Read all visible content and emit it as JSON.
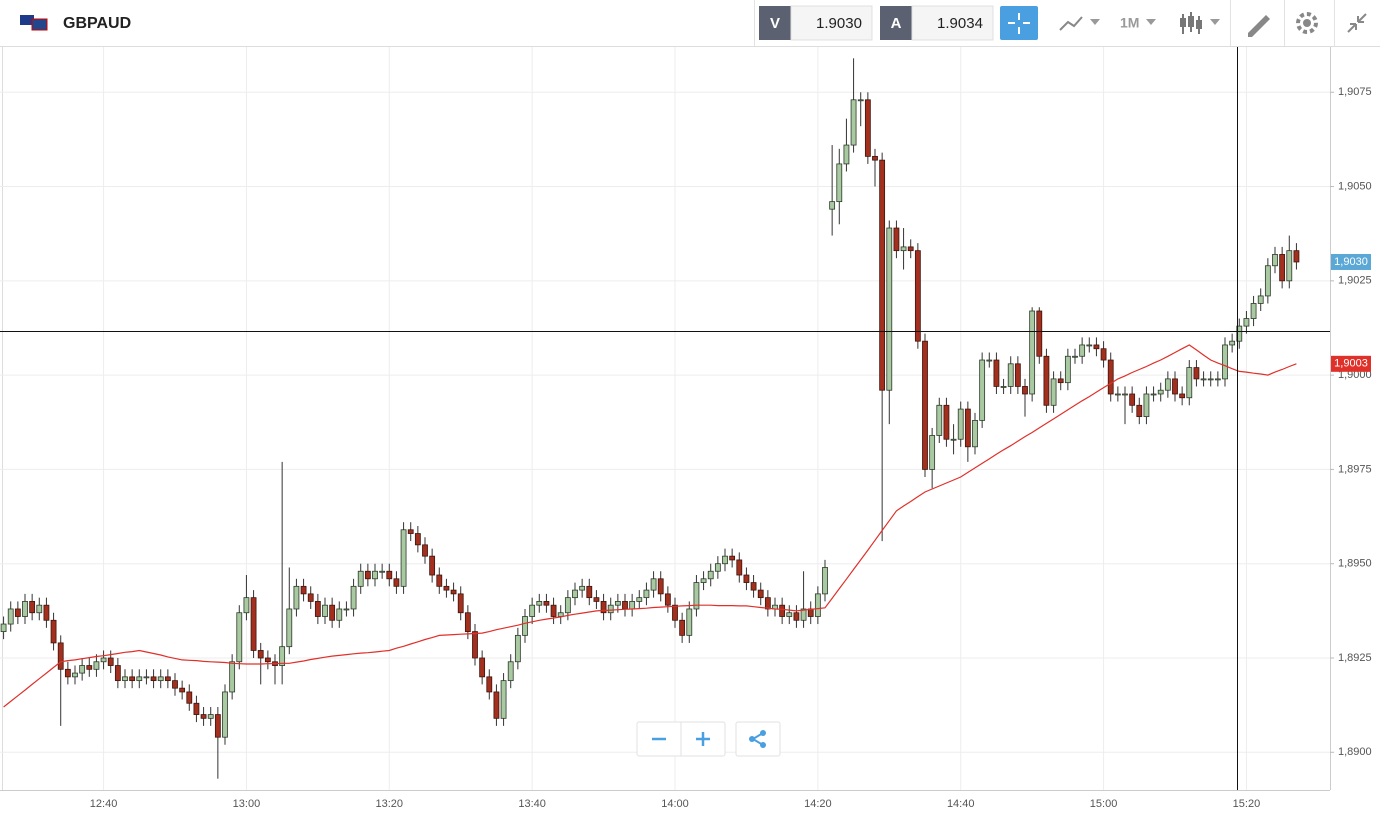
{
  "header": {
    "symbol": "GBPAUD",
    "bid_label": "V",
    "bid": "1.9030",
    "ask_label": "A",
    "ask": "1.9034",
    "interval": "1M"
  },
  "chart_data": {
    "type": "candlestick",
    "categories": [
      null,
      null,
      null,
      null,
      null,
      null,
      null,
      null,
      null,
      null,
      null,
      null,
      null,
      null,
      "12:40",
      null,
      null,
      null,
      null,
      null,
      null,
      null,
      null,
      null,
      null,
      null,
      null,
      null,
      null,
      null,
      null,
      null,
      null,
      null,
      "13:00",
      null,
      null,
      null,
      null,
      null,
      null,
      null,
      null,
      null,
      null,
      null,
      null,
      null,
      null,
      null,
      null,
      null,
      null,
      null,
      "13:20",
      null,
      null,
      null,
      null,
      null,
      null,
      null,
      null,
      null,
      null,
      null,
      null,
      null,
      null,
      null,
      null,
      null,
      null,
      null,
      "13:40",
      null,
      null,
      null,
      null,
      null,
      null,
      null,
      null,
      null,
      null,
      null,
      null,
      null,
      null,
      null,
      null,
      null,
      null,
      null,
      "14:00",
      null,
      null,
      null,
      null,
      null,
      null,
      null,
      null,
      null,
      null,
      null,
      null,
      null,
      null,
      null,
      null,
      null,
      null,
      null,
      "14:20",
      null,
      null,
      null,
      null,
      null,
      null,
      null,
      null,
      null,
      null,
      null,
      null,
      null,
      null,
      null,
      null,
      null,
      null,
      null,
      "14:40",
      null,
      null,
      null,
      null,
      null,
      null,
      null,
      null,
      null,
      null,
      null,
      null,
      null,
      null,
      null,
      null,
      null,
      null,
      null,
      "15:00",
      null,
      null,
      null,
      null,
      null,
      null,
      null,
      null,
      null,
      null,
      null,
      null,
      null,
      null,
      null,
      null,
      null,
      null,
      null,
      "15:20",
      null,
      null,
      null,
      null,
      null,
      null,
      null
    ],
    "open": [
      1.8932,
      1.8934,
      1.8938,
      1.8936,
      1.894,
      1.8937,
      1.8939,
      1.8935,
      1.8929,
      1.8922,
      1.892,
      1.8921,
      1.8923,
      1.8922,
      1.8924,
      1.8925,
      1.8923,
      1.8919,
      1.892,
      1.8919,
      1.892,
      1.892,
      1.8919,
      1.892,
      1.8919,
      1.8917,
      1.8916,
      1.8913,
      1.891,
      1.8909,
      1.891,
      1.8904,
      1.8916,
      1.8924,
      1.8937,
      1.8941,
      1.8927,
      1.8925,
      1.8924,
      1.8923,
      1.8928,
      1.8938,
      1.8944,
      1.8942,
      1.894,
      1.8936,
      1.8939,
      1.8935,
      1.8938,
      1.8938,
      1.8944,
      1.8948,
      1.8946,
      1.8948,
      1.8948,
      1.8946,
      1.8944,
      1.8959,
      1.8958,
      1.8955,
      1.8952,
      1.8947,
      1.8944,
      1.8943,
      1.8942,
      1.8937,
      1.8932,
      1.8925,
      1.892,
      1.8916,
      1.8909,
      1.8919,
      1.8924,
      1.8931,
      1.8936,
      1.8939,
      1.894,
      1.8939,
      1.8936,
      1.8937,
      1.8941,
      1.8943,
      1.8944,
      1.8941,
      1.894,
      1.8937,
      1.8939,
      1.894,
      1.8938,
      1.894,
      1.8941,
      1.8943,
      1.8946,
      1.8942,
      1.8939,
      1.8935,
      1.8931,
      1.8938,
      1.8945,
      1.8946,
      1.8948,
      1.895,
      1.8952,
      1.8951,
      1.8947,
      1.8945,
      1.8943,
      1.8941,
      1.8938,
      1.8939,
      1.8936,
      1.8937,
      1.8935,
      1.8938,
      1.8936,
      1.8942,
      1.9044,
      1.9046,
      1.9056,
      1.9061,
      1.9073,
      1.9073,
      1.9058,
      1.9057,
      1.8996,
      1.9039,
      1.9033,
      1.9034,
      1.9033,
      1.9009,
      1.8975,
      1.8984,
      1.8992,
      1.8983,
      1.8983,
      1.8991,
      1.8981,
      1.8988,
      1.9004,
      1.9004,
      1.8997,
      1.8997,
      1.9003,
      1.8997,
      1.8995,
      1.9017,
      1.9005,
      1.8992,
      1.8999,
      1.8998,
      1.9005,
      1.9005,
      1.9008,
      1.9008,
      1.9007,
      1.9004,
      1.8995,
      1.8995,
      1.8995,
      1.8992,
      1.8989,
      1.8995,
      1.8995,
      1.8996,
      1.8999,
      1.8995,
      1.8994,
      1.9002,
      1.8999,
      1.8999,
      1.8999,
      1.8999,
      1.9008,
      1.9009,
      1.9013,
      1.9015,
      1.9019,
      1.9021,
      1.9029,
      1.9032,
      1.9025,
      1.9033
    ],
    "high": [
      1.8936,
      1.894,
      1.894,
      1.8942,
      1.8942,
      1.8941,
      1.8941,
      1.8937,
      1.8931,
      1.8924,
      1.8923,
      1.8925,
      1.8925,
      1.8926,
      1.8927,
      1.8927,
      1.8925,
      1.8922,
      1.8922,
      1.8922,
      1.8922,
      1.8922,
      1.8922,
      1.8922,
      1.8921,
      1.8919,
      1.8918,
      1.8915,
      1.8912,
      1.8912,
      1.8912,
      1.8918,
      1.8926,
      1.8939,
      1.8947,
      1.8943,
      1.8929,
      1.8927,
      1.8926,
      1.8977,
      1.8949,
      1.8946,
      1.8946,
      1.8944,
      1.8942,
      1.8941,
      1.8941,
      1.894,
      1.894,
      1.8946,
      1.895,
      1.895,
      1.895,
      1.895,
      1.895,
      1.8948,
      1.8961,
      1.8961,
      1.896,
      1.8957,
      1.8954,
      1.8949,
      1.8946,
      1.8945,
      1.8944,
      1.8939,
      1.8934,
      1.8927,
      1.8922,
      1.8918,
      1.8921,
      1.8926,
      1.8933,
      1.8938,
      1.8941,
      1.8942,
      1.8942,
      1.8941,
      1.8939,
      1.8943,
      1.8945,
      1.8946,
      1.8946,
      1.8943,
      1.8942,
      1.8941,
      1.8942,
      1.8942,
      1.8942,
      1.8943,
      1.8945,
      1.8948,
      1.8948,
      1.8944,
      1.8941,
      1.8937,
      1.894,
      1.8947,
      1.8948,
      1.895,
      1.8952,
      1.8954,
      1.8954,
      1.8953,
      1.8949,
      1.8947,
      1.8945,
      1.8943,
      1.8941,
      1.8941,
      1.8939,
      1.8939,
      1.8948,
      1.894,
      1.8944,
      1.8951,
      1.9061,
      1.906,
      1.9068,
      1.9084,
      1.9075,
      1.9075,
      1.906,
      1.9059,
      1.9041,
      1.9041,
      1.9039,
      1.9036,
      1.9035,
      1.9011,
      1.8986,
      1.8994,
      1.8994,
      1.8987,
      1.8993,
      1.8993,
      1.899,
      1.9006,
      1.9006,
      1.9006,
      1.8999,
      1.9005,
      1.9005,
      1.8999,
      1.9018,
      1.9018,
      1.9007,
      1.9001,
      1.9001,
      1.9007,
      1.9007,
      1.901,
      1.901,
      1.901,
      1.9009,
      1.9006,
      1.8997,
      1.8997,
      1.8997,
      1.8994,
      1.8997,
      1.8997,
      1.8998,
      1.9001,
      1.9001,
      1.8997,
      1.9004,
      1.9004,
      1.9001,
      1.9001,
      1.9001,
      1.901,
      1.9011,
      1.9015,
      1.9017,
      1.9021,
      1.9023,
      1.9031,
      1.9034,
      1.9034,
      1.9037,
      1.9035
    ],
    "low": [
      1.893,
      1.8932,
      1.8934,
      1.8934,
      1.8935,
      1.8935,
      1.8933,
      1.8927,
      1.8907,
      1.8918,
      1.8918,
      1.8919,
      1.892,
      1.892,
      1.8922,
      1.8921,
      1.8917,
      1.8917,
      1.8917,
      1.8917,
      1.8918,
      1.8917,
      1.8917,
      1.8917,
      1.8915,
      1.8914,
      1.8911,
      1.8908,
      1.8907,
      1.8907,
      1.8893,
      1.8902,
      1.8914,
      1.8922,
      1.8935,
      1.8925,
      1.8918,
      1.8922,
      1.8918,
      1.8918,
      1.8926,
      1.8936,
      1.894,
      1.8938,
      1.8934,
      1.8934,
      1.8933,
      1.8933,
      1.8936,
      1.8936,
      1.8942,
      1.8944,
      1.8944,
      1.8946,
      1.8944,
      1.8942,
      1.8942,
      1.8956,
      1.8953,
      1.895,
      1.8945,
      1.8942,
      1.8941,
      1.894,
      1.8935,
      1.893,
      1.8923,
      1.8918,
      1.8914,
      1.8907,
      1.8907,
      1.8917,
      1.8922,
      1.8929,
      1.8934,
      1.8937,
      1.8937,
      1.8934,
      1.8934,
      1.8935,
      1.8939,
      1.8941,
      1.8939,
      1.8938,
      1.8935,
      1.8935,
      1.8937,
      1.8936,
      1.8936,
      1.8938,
      1.8939,
      1.8941,
      1.894,
      1.8937,
      1.8933,
      1.8929,
      1.8929,
      1.8936,
      1.8943,
      1.8944,
      1.8946,
      1.8948,
      1.8949,
      1.8945,
      1.8943,
      1.8941,
      1.8939,
      1.8936,
      1.8936,
      1.8934,
      1.8934,
      1.8933,
      1.8933,
      1.8934,
      1.8934,
      1.894,
      1.9037,
      1.904,
      1.9054,
      1.9059,
      1.9066,
      1.9056,
      1.905,
      1.8956,
      1.8987,
      1.9031,
      1.9028,
      1.9031,
      1.9007,
      1.8973,
      1.897,
      1.8982,
      1.8981,
      1.8979,
      1.8981,
      1.8977,
      1.8979,
      1.8986,
      1.9002,
      1.8995,
      1.8995,
      1.8995,
      1.8995,
      1.8989,
      1.8993,
      1.9003,
      1.899,
      1.899,
      1.8996,
      1.8996,
      1.9003,
      1.9003,
      1.9006,
      1.9005,
      1.9002,
      1.8993,
      1.8993,
      1.8987,
      1.899,
      1.8987,
      1.8987,
      1.8993,
      1.8993,
      1.8994,
      1.8993,
      1.8992,
      1.8992,
      1.8997,
      1.8997,
      1.8997,
      1.8997,
      1.8997,
      1.9006,
      1.9007,
      1.9011,
      1.9013,
      1.9017,
      1.9019,
      1.9027,
      1.9023,
      1.9023,
      1.9028
    ],
    "close": [
      1.8934,
      1.8938,
      1.8936,
      1.894,
      1.8937,
      1.8939,
      1.8935,
      1.8929,
      1.8922,
      1.892,
      1.8921,
      1.8923,
      1.8922,
      1.8924,
      1.8925,
      1.8923,
      1.8919,
      1.892,
      1.8919,
      1.892,
      1.892,
      1.8919,
      1.892,
      1.8919,
      1.8917,
      1.8916,
      1.8913,
      1.891,
      1.8909,
      1.891,
      1.8904,
      1.8916,
      1.8924,
      1.8937,
      1.8941,
      1.8927,
      1.8925,
      1.8924,
      1.8923,
      1.8928,
      1.8938,
      1.8944,
      1.8942,
      1.894,
      1.8936,
      1.8939,
      1.8935,
      1.8938,
      1.8938,
      1.8944,
      1.8948,
      1.8946,
      1.8948,
      1.8948,
      1.8946,
      1.8944,
      1.8959,
      1.8958,
      1.8955,
      1.8952,
      1.8947,
      1.8944,
      1.8943,
      1.8942,
      1.8937,
      1.8932,
      1.8925,
      1.892,
      1.8916,
      1.8909,
      1.8919,
      1.8924,
      1.8931,
      1.8936,
      1.8939,
      1.894,
      1.8939,
      1.8936,
      1.8937,
      1.8941,
      1.8943,
      1.8944,
      1.8941,
      1.894,
      1.8937,
      1.8939,
      1.894,
      1.8938,
      1.894,
      1.8941,
      1.8943,
      1.8946,
      1.8942,
      1.8939,
      1.8935,
      1.8931,
      1.8938,
      1.8945,
      1.8946,
      1.8948,
      1.895,
      1.8952,
      1.8951,
      1.8947,
      1.8945,
      1.8943,
      1.8941,
      1.8938,
      1.8939,
      1.8936,
      1.8937,
      1.8935,
      1.8938,
      1.8936,
      1.8942,
      1.8949,
      1.9046,
      1.9056,
      1.9061,
      1.9073,
      1.9073,
      1.9058,
      1.9057,
      1.8996,
      1.9039,
      1.9033,
      1.9034,
      1.9033,
      1.9009,
      1.8975,
      1.8984,
      1.8992,
      1.8983,
      1.8983,
      1.8991,
      1.8981,
      1.8988,
      1.9004,
      1.9004,
      1.8997,
      1.8997,
      1.9003,
      1.8997,
      1.8995,
      1.9017,
      1.9005,
      1.8992,
      1.8999,
      1.8998,
      1.9005,
      1.9005,
      1.9008,
      1.9008,
      1.9007,
      1.9004,
      1.8995,
      1.8995,
      1.8995,
      1.8992,
      1.8989,
      1.8995,
      1.8995,
      1.8996,
      1.8999,
      1.8995,
      1.8994,
      1.9002,
      1.8999,
      1.8999,
      1.8999,
      1.8999,
      1.9008,
      1.9009,
      1.9013,
      1.9015,
      1.9019,
      1.9021,
      1.9029,
      1.9032,
      1.9025,
      1.9033,
      1.903
    ],
    "up_color": "#a9c9a2",
    "down_color": "#a3301f",
    "last_price_label": "1,9030",
    "last_price_color": "#5ba8d6",
    "ma": {
      "color": "#e0302a",
      "last_label": "1,9003",
      "values": [
        1.8912,
        1.89135,
        1.8915,
        1.89165,
        1.8918,
        1.89195,
        1.8921,
        1.89225,
        1.8924,
        1.89243,
        1.89245,
        1.89248,
        1.89251,
        1.89254,
        1.89256,
        1.89259,
        1.89262,
        1.89265,
        1.89267,
        1.8927,
        1.89266,
        1.89262,
        1.89258,
        1.89253,
        1.89249,
        1.89245,
        1.89244,
        1.89243,
        1.89241,
        1.8924,
        1.89239,
        1.89238,
        1.89236,
        1.89235,
        1.89234,
        1.89234,
        1.89234,
        1.89235,
        1.89235,
        1.89236,
        1.89236,
        1.89239,
        1.89242,
        1.89246,
        1.89249,
        1.89252,
        1.89255,
        1.89257,
        1.89259,
        1.89261,
        1.89263,
        1.89264,
        1.89266,
        1.89268,
        1.8927,
        1.89276,
        1.89281,
        1.89287,
        1.89293,
        1.89299,
        1.89304,
        1.8931,
        1.89311,
        1.89312,
        1.89313,
        1.89314,
        1.89315,
        1.89316,
        1.8932,
        1.89325,
        1.89329,
        1.89333,
        1.89337,
        1.89342,
        1.89346,
        1.8935,
        1.89353,
        1.89356,
        1.89359,
        1.89363,
        1.89366,
        1.89369,
        1.89372,
        1.89375,
        1.89376,
        1.89377,
        1.89378,
        1.89379,
        1.8938,
        1.89381,
        1.89382,
        1.89384,
        1.89385,
        1.89386,
        1.89387,
        1.89388,
        1.89389,
        1.8939,
        1.8939,
        1.8939,
        1.89389,
        1.89389,
        1.89389,
        1.89388,
        1.89388,
        1.89386,
        1.89384,
        1.89382,
        1.8938,
        1.89379,
        1.89377,
        1.89375,
        1.89377,
        1.89379,
        1.89381,
        1.89383,
        1.89408,
        1.89434,
        1.89459,
        1.89485,
        1.8951,
        1.89536,
        1.89562,
        1.89588,
        1.89614,
        1.8964,
        1.89653,
        1.89665,
        1.89678,
        1.8969,
        1.89698,
        1.89706,
        1.89714,
        1.89722,
        1.8973,
        1.89742,
        1.89754,
        1.89766,
        1.89778,
        1.8979,
        1.89802,
        1.89813,
        1.89825,
        1.89837,
        1.89848,
        1.8986,
        1.89872,
        1.89884,
        1.89896,
        1.89908,
        1.8992,
        1.89932,
        1.89943,
        1.89955,
        1.89967,
        1.89978,
        1.8999,
        1.89998,
        1.90007,
        1.90015,
        1.90023,
        1.90032,
        1.9004,
        1.9005,
        1.9006,
        1.9007,
        1.9008,
        1.90067,
        1.90053,
        1.9004,
        1.90032,
        1.90025,
        1.90017,
        1.9001,
        1.90008,
        1.90005,
        1.90003,
        1.9,
        1.90008,
        1.90015,
        1.90023,
        1.9003
      ]
    },
    "ylim": [
      1.889,
      1.9087
    ],
    "yticks": [
      {
        "value": 1.89,
        "label": "1,8900"
      },
      {
        "value": 1.8925,
        "label": "1,8925"
      },
      {
        "value": 1.895,
        "label": "1,8950"
      },
      {
        "value": 1.8975,
        "label": "1,8975"
      },
      {
        "value": 1.9,
        "label": "1,9000"
      },
      {
        "value": 1.9025,
        "label": "1,9025"
      },
      {
        "value": 1.905,
        "label": "1,9050"
      },
      {
        "value": 1.9075,
        "label": "1,9075"
      }
    ],
    "grid": true
  }
}
